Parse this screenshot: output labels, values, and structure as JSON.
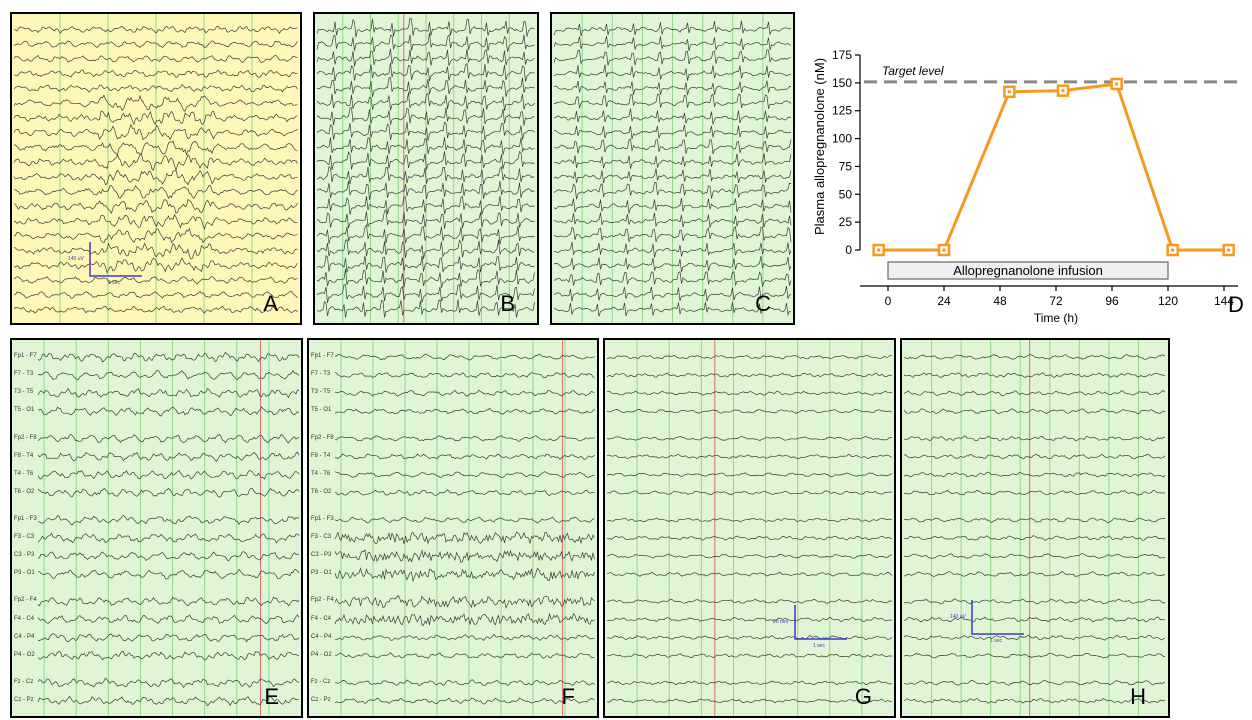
{
  "panels": {
    "A": {
      "label": "A",
      "bg": "#fff7b8",
      "scale_v": "140 uV",
      "scale_t": "1 sec"
    },
    "B": {
      "label": "B",
      "bg": "#dff5d5"
    },
    "C": {
      "label": "C",
      "bg": "#dff5d5"
    },
    "E": {
      "label": "E",
      "bg": "#dff5d5",
      "channels": [
        "Fp1 - F7",
        "F7 - T3",
        "T3 - T5",
        "T5 - O1",
        "Fp2 - F8",
        "F8 - T4",
        "T4 - T6",
        "T6 - O2",
        "Fp1 - F3",
        "F3 - C3",
        "C3 - P3",
        "P3 - O1",
        "Fp2 - F4",
        "F4 - C4",
        "C4 - P4",
        "P4 - O2",
        "Fz - Cz",
        "Cz - Pz"
      ]
    },
    "F": {
      "label": "F",
      "bg": "#dff5d5",
      "channels": [
        "Fp1 - F7",
        "F7 - T3",
        "T3 - T5",
        "T5 - O1",
        "Fp2 - F8",
        "F8 - T4",
        "T4 - T6",
        "T6 - O2",
        "Fp1 - F3",
        "F3 - C3",
        "C3 - P3",
        "P3 - O1",
        "Fp2 - F4",
        "F4 - C4",
        "C4 - P4",
        "P4 - O2",
        "Fz - Cz",
        "Cz - Pz"
      ]
    },
    "G": {
      "label": "G",
      "bg": "#dff5d5",
      "scale_v": "20 mm",
      "scale_t": "1 sec"
    },
    "H": {
      "label": "H",
      "bg": "#dff5d5",
      "scale_v": "140 uV",
      "scale_t": "1 sec"
    }
  },
  "chart_data": {
    "type": "line",
    "panel_label": "D",
    "ylabel": "Plasma allopregnanolone (nM)",
    "xlabel": "Time (h)",
    "x": [
      0,
      24,
      48,
      72,
      96,
      120,
      144
    ],
    "y_ticks": [
      0,
      25,
      50,
      75,
      100,
      125,
      150,
      175
    ],
    "ylim": [
      0,
      175
    ],
    "xlim": [
      -12,
      150
    ],
    "series": [
      {
        "color": "#f39a1f",
        "x": [
          -4,
          24,
          52,
          75,
          98,
          122,
          146
        ],
        "values": [
          0,
          0,
          142,
          143,
          149,
          0,
          0
        ]
      }
    ],
    "target_level": {
      "label": "Target level",
      "value": 150
    },
    "infusion": {
      "label": "Allopregnanolone infusion",
      "start": 0,
      "end": 120
    }
  }
}
